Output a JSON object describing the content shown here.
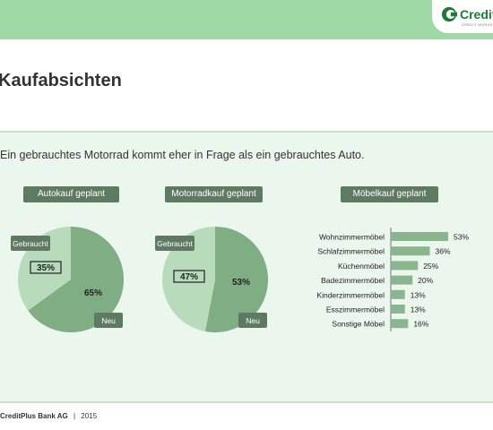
{
  "header": {
    "brand": "Credit",
    "tagline": "CRÉDIT WORKS"
  },
  "page": {
    "title": "Kaufabsichten",
    "subtitle": "Ein gebrauchtes Motorrad kommt eher in Frage als ein gebrauchtes Auto."
  },
  "footer": {
    "company": "CreditPlus Bank AG",
    "separator": "|",
    "year": "2015"
  },
  "colors": {
    "dark": "#7fad84",
    "light": "#b8dbbc",
    "pill": "#5f7a63",
    "bar": "#8ab58f"
  },
  "chart_data": [
    {
      "type": "pie",
      "title": "Autokauf geplant",
      "labels": [
        "Gebraucht",
        "Neu"
      ],
      "values": [
        35,
        65
      ],
      "value_labels": [
        "35%",
        "65%"
      ]
    },
    {
      "type": "pie",
      "title": "Motorradkauf geplant",
      "labels": [
        "Gebraucht",
        "Neu"
      ],
      "values": [
        47,
        53
      ],
      "value_labels": [
        "47%",
        "53%"
      ]
    },
    {
      "type": "bar",
      "orientation": "horizontal",
      "title": "Möbelkauf geplant",
      "categories": [
        "Wohnzimmermöbel",
        "Schlafzimmermöbel",
        "Küchenmöbel",
        "Badezimmermöbel",
        "Kinderzimmermöbel",
        "Esszimmermöbel",
        "Sonstige Möbel"
      ],
      "values": [
        53,
        36,
        25,
        20,
        13,
        13,
        16
      ],
      "value_labels": [
        "53%",
        "36%",
        "25%",
        "20%",
        "13%",
        "13%",
        "16%"
      ],
      "xlim": [
        0,
        60
      ]
    }
  ]
}
